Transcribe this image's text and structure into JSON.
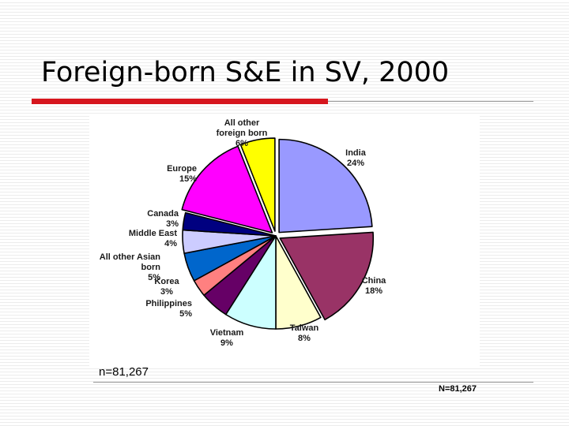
{
  "slide": {
    "title": "Foreign-born S&E in SV, 2000",
    "footnote_left": "n=81,267",
    "footnote_right": "N=81,267"
  },
  "chart_data": {
    "type": "pie",
    "start": "12 o'clock, clockwise",
    "slices": [
      {
        "label": "India",
        "pct_text": "24%",
        "value": 24,
        "color": "#9999ff",
        "exploded": true
      },
      {
        "label": "China",
        "pct_text": "18%",
        "value": 18,
        "color": "#993366",
        "exploded": true
      },
      {
        "label": "Taiwan",
        "pct_text": "8%",
        "value": 8,
        "color": "#ffffcc",
        "exploded": false
      },
      {
        "label": "Vietnam",
        "pct_text": "9%",
        "value": 9,
        "color": "#ccffff",
        "exploded": false
      },
      {
        "label": "Philippines",
        "pct_text": "5%",
        "value": 5,
        "color": "#660066",
        "exploded": false
      },
      {
        "label": "Korea",
        "pct_text": "3%",
        "value": 3,
        "color": "#ff8080",
        "exploded": false
      },
      {
        "label": "All other Asian born",
        "pct_text": "5%",
        "value": 5,
        "color": "#0066cc",
        "exploded": false
      },
      {
        "label": "Middle East",
        "pct_text": "4%",
        "value": 4,
        "color": "#ccccff",
        "exploded": false
      },
      {
        "label": "Canada",
        "pct_text": "3%",
        "value": 3,
        "color": "#000080",
        "exploded": false
      },
      {
        "label": "Europe",
        "pct_text": "15%",
        "value": 15,
        "color": "#ff00ff",
        "exploded": true
      },
      {
        "label": "All other foreign born",
        "pct_text": "6%",
        "value": 6,
        "color": "#ffff00",
        "exploded": true
      }
    ]
  }
}
